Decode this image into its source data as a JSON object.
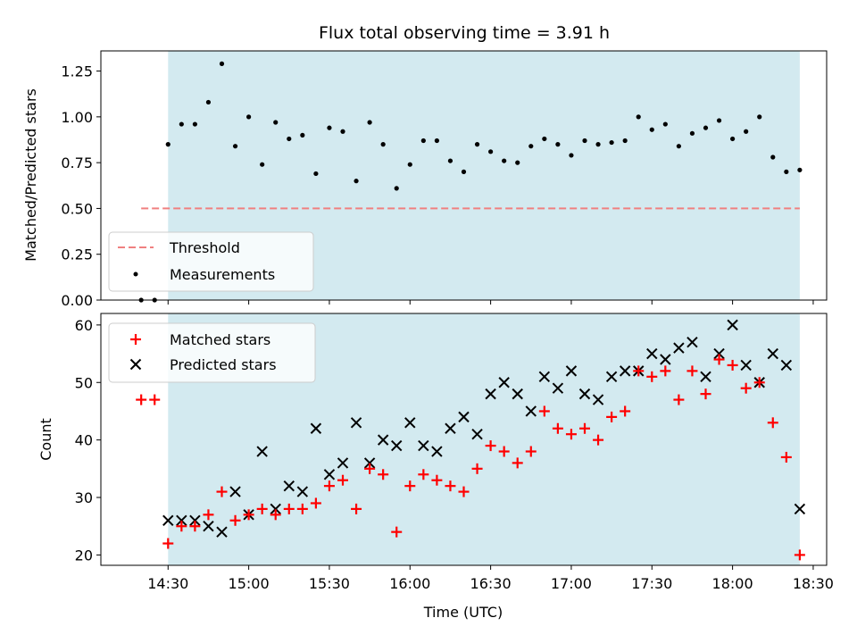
{
  "chart_data": [
    {
      "type": "scatter",
      "title": "Flux total observing time = 3.91 h",
      "xlabel": "",
      "ylabel": "Matched/Predicted stars",
      "x_unit": "time of day (UTC), HH:MM",
      "ylim": [
        0,
        1.36
      ],
      "yticks": [
        0.0,
        0.25,
        0.5,
        0.75,
        1.0,
        1.25
      ],
      "ytick_labels": [
        "0.00",
        "0.25",
        "0.50",
        "0.75",
        "1.00",
        "1.25"
      ],
      "grid": false,
      "legend_position": "lower-left",
      "observing_span": [
        "14:30",
        "18:25"
      ],
      "observing_span_color": "#d3eaf0",
      "threshold": {
        "name": "Threshold",
        "value": 0.5,
        "x_range": [
          "14:20",
          "18:25"
        ],
        "color": "#f08080",
        "style": "dashed"
      },
      "series": [
        {
          "name": "Measurements",
          "marker": "dot",
          "color": "#000000",
          "x": [
            "14:20",
            "14:25",
            "14:30",
            "14:35",
            "14:40",
            "14:45",
            "14:50",
            "14:55",
            "15:00",
            "15:05",
            "15:10",
            "15:15",
            "15:20",
            "15:25",
            "15:30",
            "15:35",
            "15:40",
            "15:45",
            "15:50",
            "15:55",
            "16:00",
            "16:05",
            "16:10",
            "16:15",
            "16:20",
            "16:25",
            "16:30",
            "16:35",
            "16:40",
            "16:45",
            "16:50",
            "16:55",
            "17:00",
            "17:05",
            "17:10",
            "17:15",
            "17:20",
            "17:25",
            "17:30",
            "17:35",
            "17:40",
            "17:45",
            "17:50",
            "17:55",
            "18:00",
            "18:05",
            "18:10",
            "18:15",
            "18:20",
            "18:25"
          ],
          "y": [
            0.0,
            0.0,
            0.85,
            0.96,
            0.96,
            1.08,
            1.29,
            0.84,
            1.0,
            0.74,
            0.97,
            0.88,
            0.9,
            0.69,
            0.94,
            0.92,
            0.65,
            0.97,
            0.85,
            0.61,
            0.74,
            0.87,
            0.87,
            0.76,
            0.7,
            0.85,
            0.81,
            0.76,
            0.75,
            0.84,
            0.88,
            0.85,
            0.79,
            0.87,
            0.85,
            0.86,
            0.87,
            1.0,
            0.93,
            0.96,
            0.84,
            0.91,
            0.94,
            0.98,
            0.88,
            0.92,
            1.0,
            0.78,
            0.7,
            0.71
          ]
        }
      ]
    },
    {
      "type": "scatter",
      "title": "",
      "xlabel": "Time (UTC)",
      "ylabel": "Count",
      "x_unit": "time of day (UTC), HH:MM",
      "xlim": [
        "14:05",
        "18:35"
      ],
      "xticks": [
        "14:30",
        "15:00",
        "15:30",
        "16:00",
        "16:30",
        "17:00",
        "17:30",
        "18:00",
        "18:30"
      ],
      "ylim": [
        18.2,
        62
      ],
      "yticks": [
        20,
        30,
        40,
        50,
        60
      ],
      "grid": false,
      "legend_position": "upper-left",
      "observing_span": [
        "14:30",
        "18:25"
      ],
      "observing_span_color": "#d3eaf0",
      "series": [
        {
          "name": "Matched stars",
          "marker": "plus",
          "color": "#ff0000",
          "x": [
            "14:20",
            "14:25",
            "14:30",
            "14:35",
            "14:40",
            "14:45",
            "14:50",
            "14:55",
            "15:00",
            "15:05",
            "15:10",
            "15:15",
            "15:20",
            "15:25",
            "15:30",
            "15:35",
            "15:40",
            "15:45",
            "15:50",
            "15:55",
            "16:00",
            "16:05",
            "16:10",
            "16:15",
            "16:20",
            "16:25",
            "16:30",
            "16:35",
            "16:40",
            "16:45",
            "16:50",
            "16:55",
            "17:00",
            "17:05",
            "17:10",
            "17:15",
            "17:20",
            "17:25",
            "17:30",
            "17:35",
            "17:40",
            "17:45",
            "17:50",
            "17:55",
            "18:00",
            "18:05",
            "18:10",
            "18:15",
            "18:20",
            "18:25"
          ],
          "y": [
            47,
            47,
            22,
            25,
            25,
            27,
            31,
            26,
            27,
            28,
            27,
            28,
            28,
            29,
            32,
            33,
            28,
            35,
            34,
            24,
            32,
            34,
            33,
            32,
            31,
            35,
            39,
            38,
            36,
            38,
            45,
            42,
            41,
            42,
            40,
            44,
            45,
            52,
            51,
            52,
            47,
            52,
            48,
            54,
            53,
            49,
            50,
            43,
            37,
            20
          ]
        },
        {
          "name": "Predicted stars",
          "marker": "x",
          "color": "#000000",
          "x": [
            "14:30",
            "14:35",
            "14:40",
            "14:45",
            "14:50",
            "14:55",
            "15:00",
            "15:05",
            "15:10",
            "15:15",
            "15:20",
            "15:25",
            "15:30",
            "15:35",
            "15:40",
            "15:45",
            "15:50",
            "15:55",
            "16:00",
            "16:05",
            "16:10",
            "16:15",
            "16:20",
            "16:25",
            "16:30",
            "16:35",
            "16:40",
            "16:45",
            "16:50",
            "16:55",
            "17:00",
            "17:05",
            "17:10",
            "17:15",
            "17:20",
            "17:25",
            "17:30",
            "17:35",
            "17:40",
            "17:45",
            "17:50",
            "17:55",
            "18:00",
            "18:05",
            "18:10",
            "18:15",
            "18:20",
            "18:25"
          ],
          "y": [
            26,
            26,
            26,
            25,
            24,
            31,
            27,
            38,
            28,
            32,
            31,
            42,
            34,
            36,
            43,
            36,
            40,
            39,
            43,
            39,
            38,
            42,
            44,
            41,
            48,
            50,
            48,
            45,
            51,
            49,
            52,
            48,
            47,
            51,
            52,
            52,
            55,
            54,
            56,
            57,
            51,
            55,
            60,
            53,
            50,
            55,
            53,
            28
          ]
        }
      ]
    }
  ]
}
